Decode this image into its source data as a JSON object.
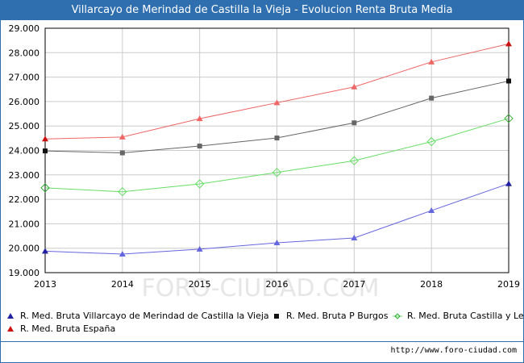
{
  "page": {
    "title": "Villarcayo de Merindad de Castilla la Vieja - Evolucion Renta Bruta Media",
    "source": "http://www.foro-ciudad.com",
    "watermark": "FORO-CIUDAD.COM"
  },
  "colors": {
    "title_bg": "#2f6fb0",
    "grid": "#cccccc"
  },
  "chart_data": {
    "type": "line",
    "title": "Villarcayo de Merindad de Castilla la Vieja - Evolucion Renta Bruta Media",
    "xlabel": "",
    "ylabel": "",
    "x": [
      2013,
      2014,
      2015,
      2016,
      2017,
      2018,
      2019
    ],
    "ylim": [
      19000,
      29000
    ],
    "yticks": [
      19000,
      20000,
      21000,
      22000,
      23000,
      24000,
      25000,
      26000,
      27000,
      28000,
      29000
    ],
    "ytick_labels": [
      "19.000",
      "20.000",
      "21.000",
      "22.000",
      "23.000",
      "24.000",
      "25.000",
      "26.000",
      "27.000",
      "28.000",
      "29.000"
    ],
    "grid": true,
    "legend_position": "bottom",
    "series": [
      {
        "name": "R. Med. Bruta Villarcayo de Merindad de Castilla la Vieja",
        "color": "#6666dd",
        "end_color": "#2020a0",
        "marker": "triangle",
        "values": [
          19880,
          19760,
          19960,
          20220,
          20420,
          21540,
          22640
        ]
      },
      {
        "name": "R. Med. Bruta P Burgos",
        "color": "#666666",
        "end_color": "#111111",
        "marker": "square",
        "values": [
          23980,
          23900,
          24180,
          24510,
          25130,
          26140,
          26840
        ]
      },
      {
        "name": "R. Med. Bruta Castilla y Leo",
        "color": "#66dd66",
        "end_color": "#33aa33",
        "marker": "diamond",
        "values": [
          22470,
          22310,
          22630,
          23100,
          23580,
          24360,
          25310
        ]
      },
      {
        "name": "R. Med. Bruta España",
        "color": "#ee6666",
        "end_color": "#cc1111",
        "marker": "triangle",
        "values": [
          24470,
          24550,
          25300,
          25950,
          26600,
          27620,
          28360
        ]
      }
    ]
  }
}
